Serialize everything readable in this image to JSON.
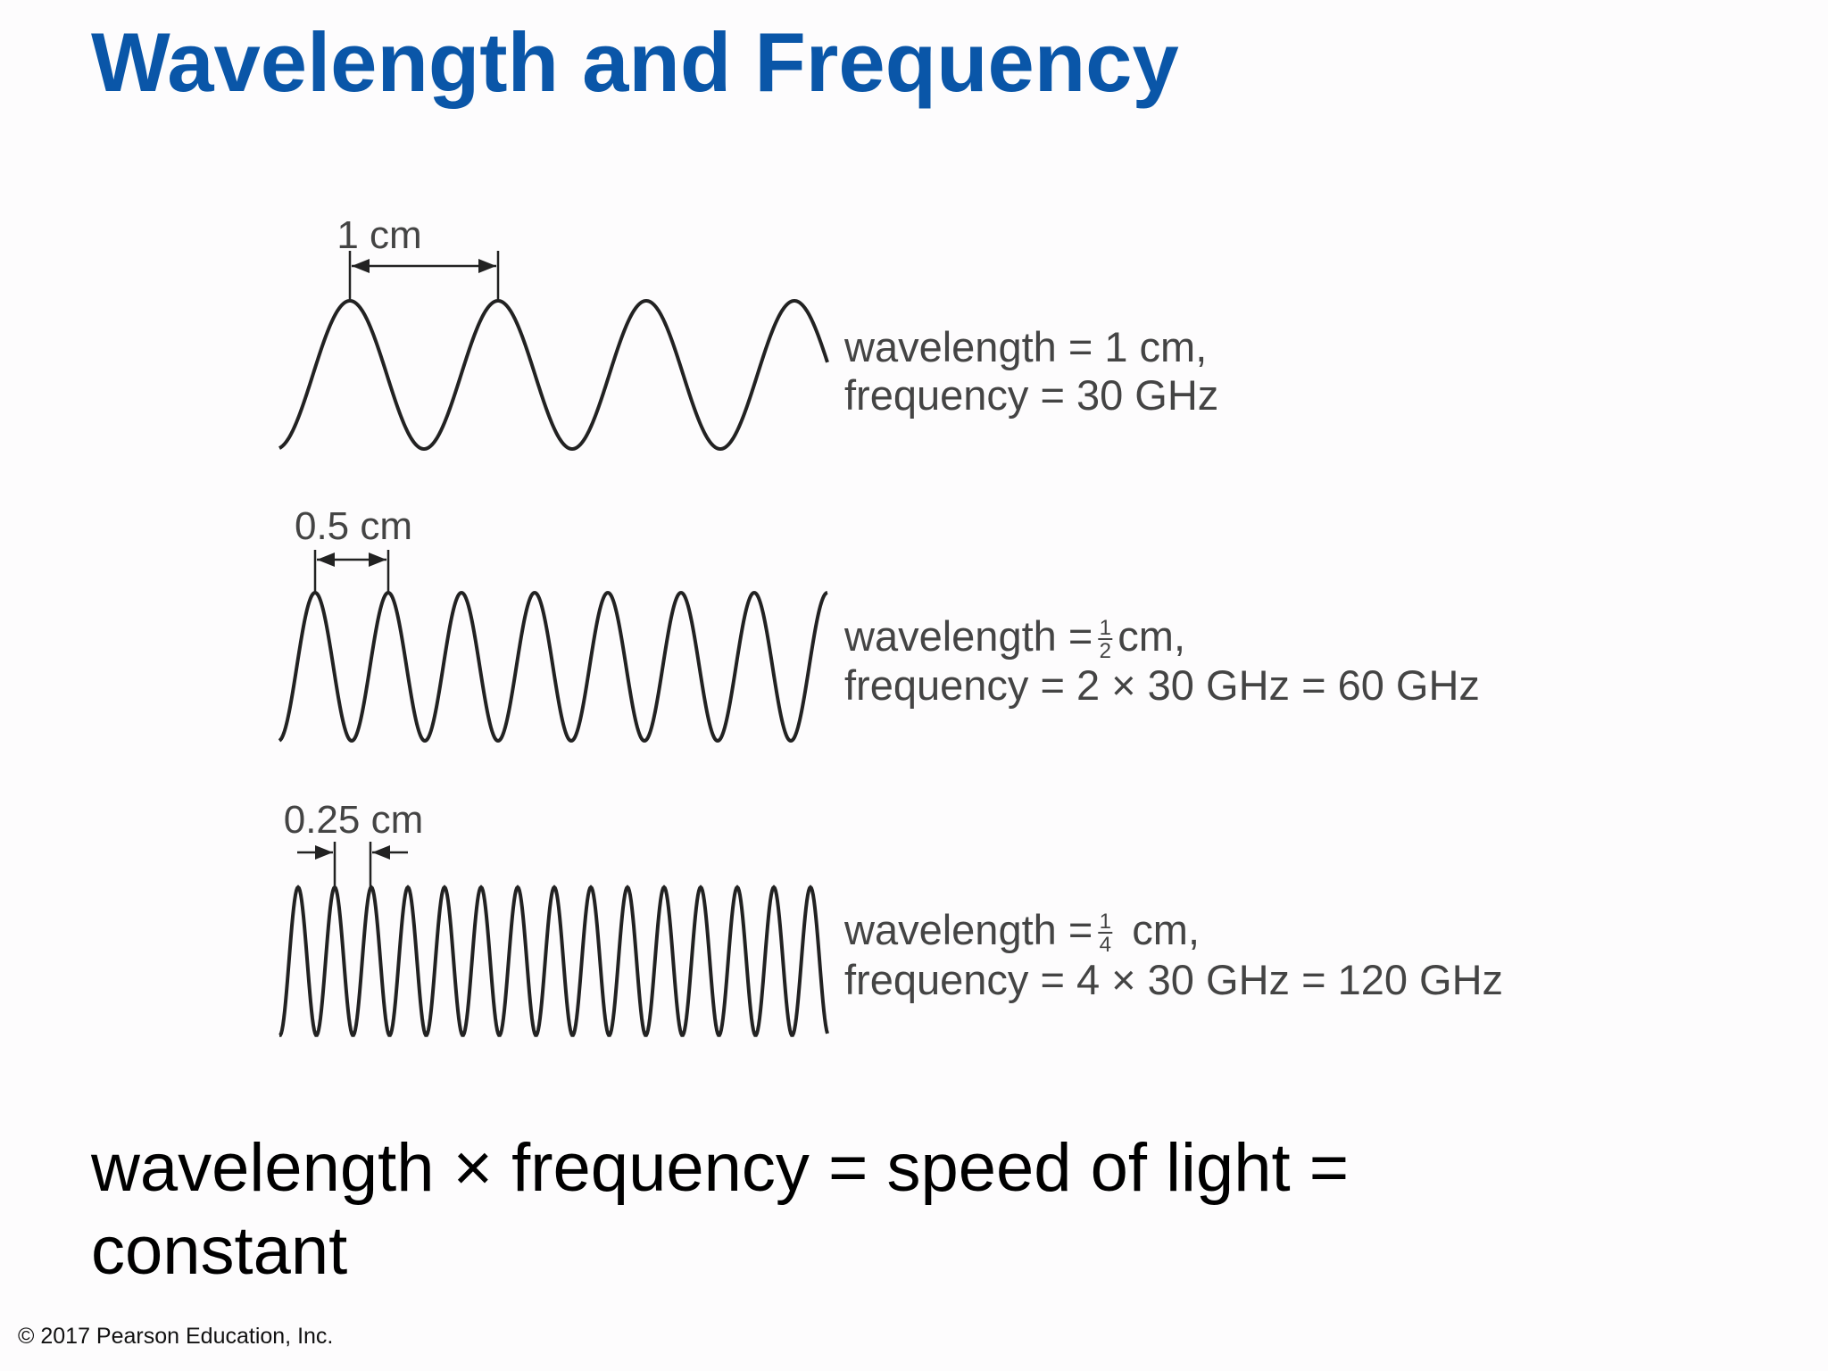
{
  "title": "Wavelength and Frequency",
  "waves": [
    {
      "marker": "1 cm",
      "wavelength_text": "wavelength = 1 cm,",
      "frequency_text": "frequency = 30 GHz"
    },
    {
      "marker": "0.5 cm",
      "wavelength_prefix": "wavelength =",
      "fraction": {
        "numerator": "1",
        "denominator": "2"
      },
      "wavelength_suffix": "cm,",
      "frequency_text": "frequency = 2 × 30 GHz = 60 GHz"
    },
    {
      "marker": "0.25 cm",
      "wavelength_prefix": "wavelength =",
      "fraction": {
        "numerator": "1",
        "denominator": "4"
      },
      "wavelength_suffix": "cm,",
      "frequency_text": "frequency = 4 × 30 GHz = 120 GHz"
    }
  ],
  "equation": "wavelength × frequency = speed of light = constant",
  "copyright": "© 2017 Pearson Education, Inc."
}
